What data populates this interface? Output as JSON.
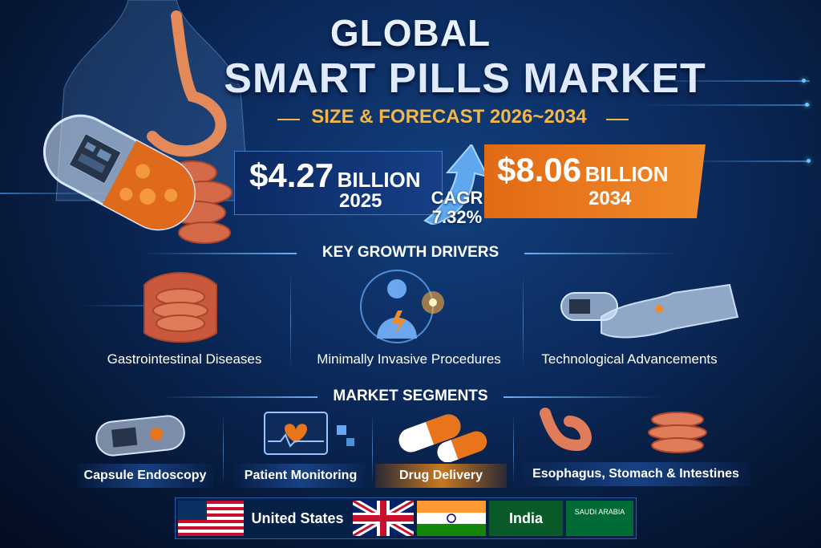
{
  "title": {
    "line1": "GLOBAL",
    "line2": "SMART PILLS MARKET",
    "subtitle": "SIZE & FORECAST 2026~2034"
  },
  "market": {
    "start_value": "$4.27",
    "start_unit": "BILLION",
    "start_year": "2025",
    "cagr_label": "CAGR",
    "cagr_value": "7.32%",
    "end_value": "$8.06",
    "end_unit": "BILLION",
    "end_year": "2034"
  },
  "drivers": {
    "header": "KEY GROWTH DRIVERS",
    "items": [
      {
        "label": "Gastrointestinal Diseases",
        "icon": "intestine-icon"
      },
      {
        "label": "Minimally Invasive Procedures",
        "icon": "human-body-icon"
      },
      {
        "label": "Technological Advancements",
        "icon": "robot-hand-icon"
      }
    ]
  },
  "segments": {
    "header": "MARKET SEGMENTS",
    "items": [
      {
        "label": "Capsule Endoscopy",
        "icon": "capsule-icon"
      },
      {
        "label": "Patient Monitoring",
        "icon": "monitor-heart-icon"
      },
      {
        "label": "Drug Delivery",
        "icon": "pills-icon"
      },
      {
        "label": "Esophagus, Stomach & Intestines",
        "icon": "organs-icon"
      }
    ]
  },
  "regions": {
    "items": [
      {
        "label": "United States",
        "icon": "us-flag-icon"
      },
      {
        "label": "",
        "icon": "uk-flag-icon"
      },
      {
        "label": "",
        "icon": "india-flag-icon"
      },
      {
        "label": "India",
        "icon": "india-flag-icon"
      },
      {
        "label": "SAUDI ARABIA",
        "icon": "saudi-flag-icon"
      }
    ]
  },
  "colors": {
    "background": "#0b2a5c",
    "accent_orange": "#e8741c",
    "accent_gold": "#f2b64a",
    "accent_blue": "#3f78c9"
  }
}
